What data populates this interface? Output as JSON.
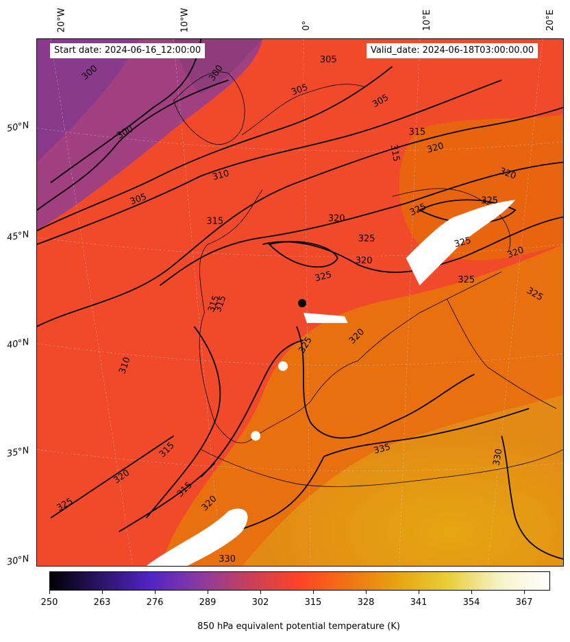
{
  "header": {
    "start_date": "Start date: 2024-06-16_12:00:00",
    "valid_date": "Valid_date: 2024-06-18T03:00:00.00"
  },
  "axes": {
    "longitude_labels": [
      "20°W",
      "10°W",
      "0°",
      "10°E",
      "20°E"
    ],
    "latitude_labels": [
      "50°N",
      "45°N",
      "40°N",
      "35°N",
      "30°N"
    ]
  },
  "colorbar": {
    "title": "850 hPa equivalent potential temperature (K)",
    "ticks": [
      "250",
      "263",
      "276",
      "289",
      "302",
      "315",
      "328",
      "341",
      "354",
      "367"
    ],
    "colormap": [
      "#000004",
      "#2b1466",
      "#5024c4",
      "#8a3aa0",
      "#c8405a",
      "#ff4425",
      "#f07412",
      "#e6a612",
      "#e8cf3a",
      "#f6f2c8",
      "#ffffff"
    ]
  },
  "contour_labels": [
    "300",
    "300",
    "300",
    "305",
    "305",
    "305",
    "305",
    "310",
    "310",
    "315",
    "315",
    "315",
    "315",
    "315",
    "315",
    "320",
    "320",
    "320",
    "320",
    "320",
    "320",
    "320",
    "325",
    "325",
    "325",
    "325",
    "325",
    "325",
    "325",
    "325",
    "325",
    "330",
    "330",
    "335",
    "315",
    "320"
  ],
  "chart_data": {
    "type": "heatmap",
    "title": "",
    "field": "850 hPa equivalent potential temperature (K)",
    "units": "K",
    "color_range": [
      250,
      373
    ],
    "contour_interval": 5,
    "lon_range_labels": [
      "20°W",
      "20°E"
    ],
    "lat_range_labels": [
      "30°N",
      "50°N"
    ],
    "contour_levels": [
      300,
      305,
      310,
      315,
      320,
      325,
      330,
      335
    ]
  }
}
